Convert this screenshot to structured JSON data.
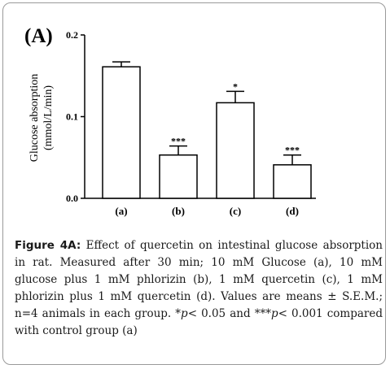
{
  "chart_data": {
    "type": "bar",
    "panel_label": "(A)",
    "categories": [
      "(a)",
      "(b)",
      "(c)",
      "(d)"
    ],
    "values": [
      0.161,
      0.053,
      0.117,
      0.041
    ],
    "errors": [
      0.006,
      0.011,
      0.014,
      0.012
    ],
    "significance": [
      "",
      "***",
      "*",
      "***"
    ],
    "ylabel_line1": "Glucose absorption",
    "ylabel_line2": "(mmol/L/min)",
    "ylim": [
      0,
      0.2
    ],
    "yticks": [
      0.0,
      0.1,
      0.2
    ],
    "ytick_labels": [
      "0.0",
      "0.1",
      "0.2"
    ],
    "xlabel": "",
    "grid": false,
    "bar_fill": "#ffffff",
    "bar_stroke": "#000000"
  },
  "caption": {
    "lead": "Figure 4A:",
    "part1": " Effect of quercetin on intestinal glucose absorption in rat. Measured after 30 min; 10 mM Glucose (a), 10 mM glucose plus 1 mM phlorizin (b), 1 mM quercetin (c), 1 mM phlorizin plus 1 mM quercetin (d). Values are means ± S.E.M.; n=4 animals in each group. ",
    "sig1_mark": "*p",
    "sig1_text": "< 0.05 and ",
    "sig2_mark": "***p",
    "sig2_text": "< 0.001 compared with control group (a)"
  }
}
